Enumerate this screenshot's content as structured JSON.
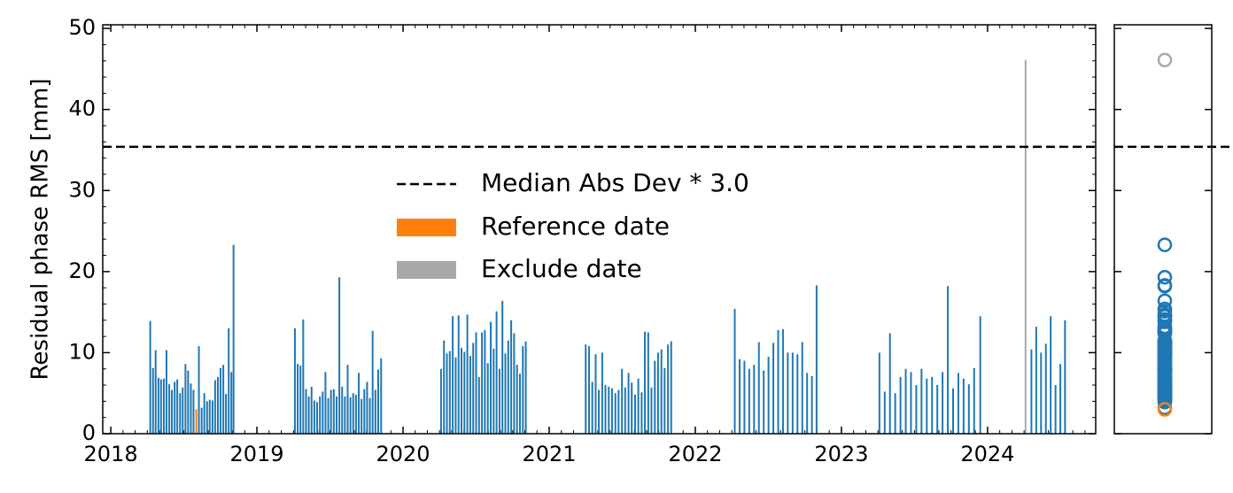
{
  "chart_data": {
    "type": "bar",
    "ylabel": "Residual phase RMS [mm]",
    "xlim": [
      2017.945,
      2024.74
    ],
    "xticks": [
      2018,
      2019,
      2020,
      2021,
      2022,
      2023,
      2024
    ],
    "ylim": [
      0,
      50.45
    ],
    "yticks": [
      0,
      10,
      20,
      30,
      40,
      50
    ],
    "threshold": {
      "name": "Median Abs Dev * 3.0",
      "value": 35.4,
      "color": "#000000"
    },
    "series": [
      {
        "color": "#1f77b4",
        "x": [
          2018.27,
          2018.289,
          2018.307,
          2018.326,
          2018.344,
          2018.363,
          2018.381,
          2018.4,
          2018.418,
          2018.437,
          2018.455,
          2018.474,
          2018.492,
          2018.511,
          2018.529,
          2018.548,
          2018.566,
          2018.603,
          2018.622,
          2018.64,
          2018.659,
          2018.677,
          2018.696,
          2018.714,
          2018.733,
          2018.751,
          2018.77,
          2018.788,
          2018.807,
          2018.825,
          2018.84,
          2019.26,
          2019.279,
          2019.298,
          2019.317,
          2019.336,
          2019.355,
          2019.374,
          2019.393,
          2019.412,
          2019.431,
          2019.45,
          2019.469,
          2019.488,
          2019.507,
          2019.526,
          2019.545,
          2019.564,
          2019.583,
          2019.602,
          2019.621,
          2019.64,
          2019.659,
          2019.678,
          2019.697,
          2019.716,
          2019.735,
          2019.754,
          2019.773,
          2019.792,
          2019.811,
          2019.83,
          2019.85,
          2020.26,
          2020.28,
          2020.3,
          2020.32,
          2020.34,
          2020.36,
          2020.38,
          2020.4,
          2020.42,
          2020.44,
          2020.46,
          2020.48,
          2020.5,
          2020.52,
          2020.54,
          2020.56,
          2020.58,
          2020.6,
          2020.62,
          2020.64,
          2020.66,
          2020.68,
          2020.7,
          2020.72,
          2020.74,
          2020.76,
          2020.78,
          2020.8,
          2020.82,
          2020.84,
          2021.25,
          2021.273,
          2021.295,
          2021.318,
          2021.34,
          2021.363,
          2021.385,
          2021.408,
          2021.43,
          2021.453,
          2021.475,
          2021.498,
          2021.52,
          2021.543,
          2021.565,
          2021.588,
          2021.61,
          2021.633,
          2021.655,
          2021.678,
          2021.7,
          2021.723,
          2021.745,
          2021.768,
          2021.79,
          2021.813,
          2021.835,
          2022.27,
          2022.303,
          2022.336,
          2022.369,
          2022.402,
          2022.435,
          2022.468,
          2022.501,
          2022.534,
          2022.567,
          2022.6,
          2022.633,
          2022.666,
          2022.699,
          2022.732,
          2022.765,
          2022.798,
          2022.83,
          2023.26,
          2023.296,
          2023.332,
          2023.368,
          2023.404,
          2023.44,
          2023.476,
          2023.512,
          2023.548,
          2023.584,
          2023.62,
          2023.656,
          2023.692,
          2023.728,
          2023.764,
          2023.8,
          2023.836,
          2023.872,
          2023.908,
          2023.95,
          2024.3,
          2024.333,
          2024.366,
          2024.399,
          2024.432,
          2024.465,
          2024.498,
          2024.53
        ],
        "values": [
          13.9,
          8.1,
          10.3,
          6.9,
          6.7,
          6.8,
          10.3,
          6.1,
          5.4,
          6.4,
          6.7,
          5.0,
          5.7,
          8.6,
          7.8,
          6.2,
          5.4,
          10.8,
          3.2,
          5.0,
          4.0,
          4.2,
          4.1,
          6.6,
          7.0,
          8.1,
          8.5,
          4.9,
          13.0,
          7.6,
          23.3,
          13.0,
          8.6,
          8.4,
          14.1,
          5.5,
          4.6,
          5.8,
          4.1,
          3.9,
          4.6,
          5.2,
          7.6,
          4.4,
          5.4,
          5.5,
          4.6,
          19.3,
          5.8,
          4.6,
          8.5,
          4.5,
          5.0,
          4.8,
          7.5,
          4.3,
          5.5,
          6.4,
          4.4,
          12.7,
          5.4,
          7.9,
          9.3,
          8.0,
          11.5,
          9.9,
          10.2,
          14.5,
          9.4,
          14.6,
          10.6,
          10.1,
          14.7,
          9.6,
          11.2,
          12.5,
          7.0,
          12.5,
          12.8,
          8.7,
          13.8,
          10.5,
          15.1,
          8.0,
          16.4,
          9.9,
          11.5,
          14.0,
          12.4,
          8.5,
          7.4,
          10.8,
          11.4,
          11.0,
          10.8,
          6.4,
          9.8,
          5.4,
          10.0,
          6.0,
          5.8,
          5.6,
          5.0,
          5.4,
          8.0,
          5.7,
          7.5,
          6.3,
          4.8,
          6.8,
          5.1,
          12.6,
          12.5,
          5.7,
          9.0,
          10.0,
          10.4,
          8.1,
          11.0,
          11.4,
          15.4,
          9.2,
          9.0,
          8.0,
          8.5,
          11.3,
          7.8,
          9.5,
          11.2,
          12.8,
          12.9,
          10.0,
          10.0,
          9.8,
          11.3,
          7.5,
          7.1,
          18.3,
          10.0,
          5.2,
          12.4,
          5.0,
          7.0,
          8.0,
          7.6,
          6.0,
          8.0,
          6.8,
          7.0,
          6.0,
          7.6,
          18.2,
          5.6,
          7.5,
          6.8,
          6.1,
          8.1,
          14.5,
          10.4,
          13.2,
          10.0,
          11.1,
          14.5,
          6.0,
          8.6,
          14.0
        ]
      },
      {
        "name": "Reference date",
        "color": "#ff7f0e",
        "x": [
          2018.585
        ],
        "values": [
          3.0
        ]
      },
      {
        "name": "Exclude date",
        "color": "#a9a9a9",
        "x": [
          2024.26
        ],
        "values": [
          46.1
        ]
      }
    ]
  }
}
